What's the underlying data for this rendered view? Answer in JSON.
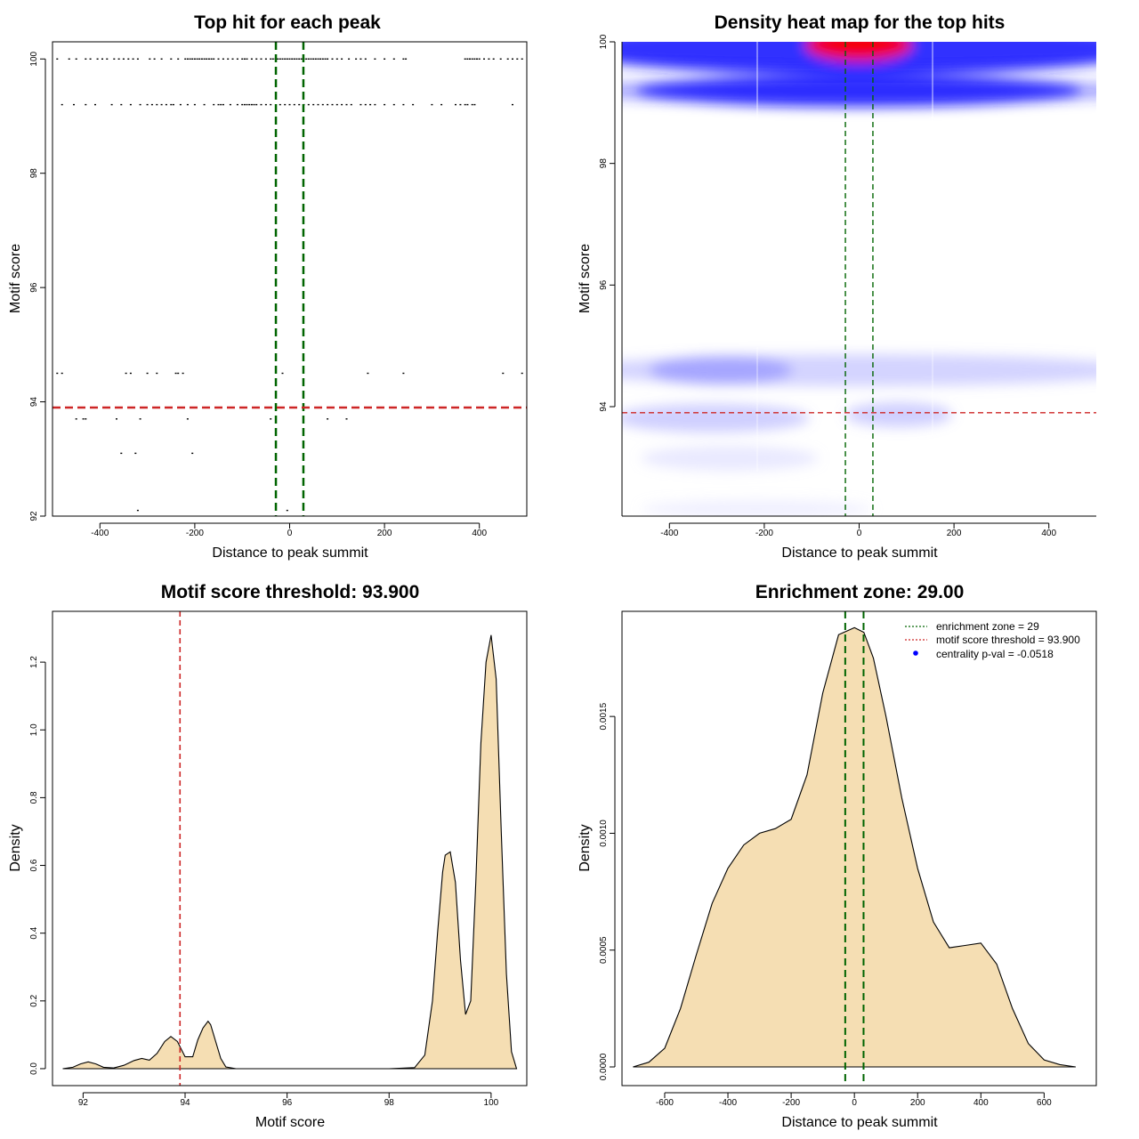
{
  "chart_data": [
    {
      "type": "scatter",
      "title": "Top hit for each peak",
      "xlabel": "Distance to peak summit",
      "ylabel": "Motif score",
      "xlim": [
        -500,
        500
      ],
      "ylim": [
        92,
        100.3
      ],
      "xticks": [
        -400,
        -200,
        0,
        200,
        400
      ],
      "yticks": [
        92,
        94,
        96,
        98,
        100
      ],
      "enrichment_zone": [
        -29,
        29
      ],
      "threshold": 93.9,
      "series": [
        {
          "x": [
            -490,
            -465,
            -450,
            -430,
            -420,
            -405,
            -395,
            -385,
            -370,
            -360,
            -350,
            -340,
            -330,
            -320,
            -295,
            -285,
            -270,
            -250,
            -235,
            -220,
            -215,
            -210,
            -205,
            -200,
            -195,
            -190,
            -185,
            -180,
            -175,
            -170,
            -165,
            -160,
            -150,
            -140,
            -130,
            -120,
            -110,
            -100,
            -95,
            -90,
            -80,
            -70,
            -60,
            -50,
            -40,
            -35,
            -30,
            -25,
            -20,
            -15,
            -10,
            -5,
            0,
            5,
            10,
            15,
            20,
            25,
            30,
            35,
            40,
            45,
            50,
            55,
            60,
            65,
            70,
            75,
            80,
            90,
            100,
            110,
            125,
            140,
            150,
            160,
            180,
            200,
            220,
            240,
            245,
            370,
            375,
            380,
            385,
            390,
            395,
            400,
            410,
            420,
            430,
            445,
            460,
            470,
            480,
            490
          ],
          "y": [
            100,
            100,
            100,
            100,
            100,
            100,
            100,
            100,
            100,
            100,
            100,
            100,
            100,
            100,
            100,
            100,
            100,
            100,
            100,
            100,
            100,
            100,
            100,
            100,
            100,
            100,
            100,
            100,
            100,
            100,
            100,
            100,
            100,
            100,
            100,
            100,
            100,
            100,
            100,
            100,
            100,
            100,
            100,
            100,
            100,
            100,
            100,
            100,
            100,
            100,
            100,
            100,
            100,
            100,
            100,
            100,
            100,
            100,
            100,
            100,
            100,
            100,
            100,
            100,
            100,
            100,
            100,
            100,
            100,
            100,
            100,
            100,
            100,
            100,
            100,
            100,
            100,
            100,
            100,
            100,
            100,
            100,
            100,
            100,
            100,
            100,
            100,
            100,
            100,
            100,
            100,
            100,
            100,
            100,
            100,
            100
          ]
        },
        {
          "x": [
            -480,
            -455,
            -430,
            -410,
            -375,
            -355,
            -335,
            -315,
            -300,
            -290,
            -280,
            -270,
            -260,
            -250,
            -245,
            -230,
            -215,
            -200,
            -180,
            -160,
            -150,
            -145,
            -140,
            -125,
            -110,
            -100,
            -95,
            -90,
            -85,
            -80,
            -75,
            -70,
            -60,
            -50,
            -40,
            -20,
            -10,
            0,
            10,
            20,
            30,
            40,
            50,
            60,
            70,
            80,
            90,
            100,
            110,
            120,
            130,
            150,
            160,
            170,
            180,
            200,
            220,
            240,
            260,
            300,
            320,
            350,
            360,
            370,
            375,
            385,
            390,
            470
          ],
          "y": [
            99.2,
            99.2,
            99.2,
            99.2,
            99.2,
            99.2,
            99.2,
            99.2,
            99.2,
            99.2,
            99.2,
            99.2,
            99.2,
            99.2,
            99.2,
            99.2,
            99.2,
            99.2,
            99.2,
            99.2,
            99.2,
            99.2,
            99.2,
            99.2,
            99.2,
            99.2,
            99.2,
            99.2,
            99.2,
            99.2,
            99.2,
            99.2,
            99.2,
            99.2,
            99.2,
            99.2,
            99.2,
            99.2,
            99.2,
            99.2,
            99.2,
            99.2,
            99.2,
            99.2,
            99.2,
            99.2,
            99.2,
            99.2,
            99.2,
            99.2,
            99.2,
            99.2,
            99.2,
            99.2,
            99.2,
            99.2,
            99.2,
            99.2,
            99.2,
            99.2,
            99.2,
            99.2,
            99.2,
            99.2,
            99.2,
            99.2,
            99.2,
            99.2
          ]
        },
        {
          "x": [
            -490,
            -480,
            -345,
            -335,
            -300,
            -280,
            -240,
            -235,
            -225,
            -15,
            165,
            240,
            450,
            490
          ],
          "y": [
            94.5,
            94.5,
            94.5,
            94.5,
            94.5,
            94.5,
            94.5,
            94.5,
            94.5,
            94.5,
            94.5,
            94.5,
            94.5,
            94.5
          ]
        },
        {
          "x": [
            -450,
            -435,
            -430,
            -365,
            -315,
            -215,
            -40,
            80,
            120
          ],
          "y": [
            93.7,
            93.7,
            93.7,
            93.7,
            93.7,
            93.7,
            93.7,
            93.7,
            93.7
          ]
        },
        {
          "x": [
            -355,
            -325,
            -205
          ],
          "y": [
            93.1,
            93.1,
            93.1
          ]
        },
        {
          "x": [
            -320,
            -5
          ],
          "y": [
            92.1,
            92.1
          ]
        }
      ]
    },
    {
      "type": "heatmap",
      "title": "Density heat map for the top hits",
      "xlabel": "Distance to peak summit",
      "ylabel": "Motif score",
      "xlim": [
        -500,
        500
      ],
      "ylim": [
        92.2,
        100
      ],
      "xticks": [
        -400,
        -200,
        0,
        200,
        400
      ],
      "yticks": [
        94,
        96,
        98,
        100
      ],
      "enrichment_zone": [
        -29,
        29
      ],
      "threshold": 93.9,
      "colors": [
        "#ffffff",
        "#0000ff",
        "#ff0000"
      ]
    },
    {
      "type": "area",
      "title": "Motif score threshold: 93.900",
      "xlabel": "Motif score",
      "ylabel": "Density",
      "xlim": [
        91.4,
        100.7
      ],
      "ylim": [
        -0.05,
        1.35
      ],
      "xticks": [
        92,
        94,
        96,
        98,
        100
      ],
      "yticks": [
        "0.0",
        "0.2",
        "0.4",
        "0.6",
        "0.8",
        "1.0",
        "1.2"
      ],
      "threshold": 93.9,
      "x": [
        91.6,
        91.8,
        91.95,
        92.1,
        92.25,
        92.4,
        92.6,
        92.8,
        93.0,
        93.15,
        93.3,
        93.45,
        93.6,
        93.72,
        93.85,
        94.0,
        94.15,
        94.25,
        94.35,
        94.45,
        94.5,
        94.6,
        94.7,
        94.8,
        95.0,
        95.5,
        96,
        97,
        98,
        98.5,
        98.7,
        98.85,
        98.95,
        99.05,
        99.1,
        99.2,
        99.3,
        99.4,
        99.5,
        99.6,
        99.7,
        99.8,
        99.9,
        100.0,
        100.1,
        100.2,
        100.3,
        100.4,
        100.5
      ],
      "y": [
        0.0,
        0.004,
        0.014,
        0.02,
        0.014,
        0.004,
        0.002,
        0.01,
        0.024,
        0.03,
        0.025,
        0.045,
        0.08,
        0.095,
        0.08,
        0.035,
        0.035,
        0.085,
        0.12,
        0.14,
        0.13,
        0.08,
        0.03,
        0.005,
        0.0,
        0.0,
        0.0,
        0.0,
        0.0,
        0.003,
        0.04,
        0.2,
        0.4,
        0.58,
        0.63,
        0.64,
        0.55,
        0.32,
        0.16,
        0.2,
        0.55,
        0.96,
        1.2,
        1.28,
        1.15,
        0.7,
        0.28,
        0.05,
        0.0
      ]
    },
    {
      "type": "area",
      "title": "Enrichment zone: 29.00",
      "xlabel": "Distance to peak summit",
      "ylabel": "Density",
      "xlim": [
        -735,
        765
      ],
      "ylim": [
        -8e-05,
        0.00195
      ],
      "xticks": [
        -600,
        -400,
        -200,
        0,
        200,
        400,
        600
      ],
      "yticks": [
        "0.0000",
        "0.0005",
        "0.0010",
        "0.0015"
      ],
      "enrichment_zone": [
        -29,
        29
      ],
      "x": [
        -700,
        -650,
        -600,
        -550,
        -500,
        -450,
        -400,
        -350,
        -300,
        -250,
        -200,
        -150,
        -100,
        -50,
        0,
        30,
        60,
        100,
        150,
        200,
        250,
        300,
        350,
        400,
        450,
        500,
        550,
        600,
        650,
        700
      ],
      "y": [
        0.0,
        2e-05,
        8e-05,
        0.00025,
        0.00048,
        0.0007,
        0.00085,
        0.00095,
        0.001,
        0.00102,
        0.00106,
        0.00125,
        0.0016,
        0.00185,
        0.00188,
        0.00186,
        0.00175,
        0.0015,
        0.00115,
        0.00085,
        0.00062,
        0.00051,
        0.00052,
        0.00053,
        0.00044,
        0.00025,
        0.0001,
        3e-05,
        1e-05,
        0.0
      ],
      "legend": {
        "placement": "top-right",
        "entries": [
          "enrichment zone = 29",
          "motif score threshold = 93.900",
          "centrality p-val = -0.0518"
        ],
        "colors": [
          "#006400",
          "#cd2626",
          "#0000ff"
        ]
      }
    }
  ]
}
